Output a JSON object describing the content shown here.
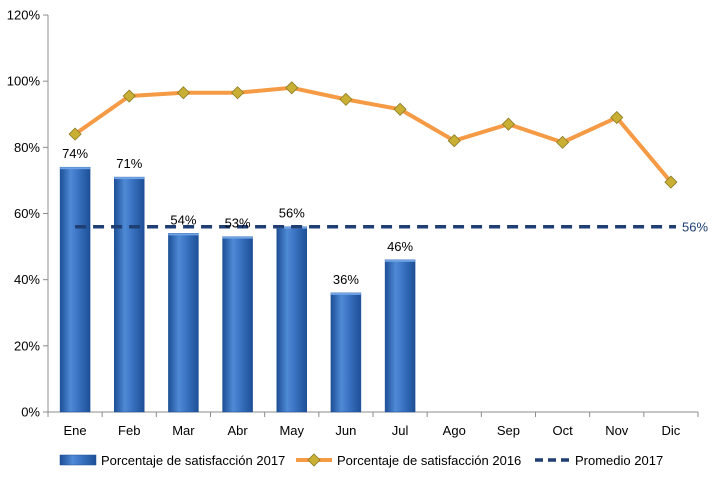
{
  "chart_data": {
    "type": "bar",
    "categories": [
      "Ene",
      "Feb",
      "Mar",
      "Abr",
      "May",
      "Jun",
      "Jul",
      "Ago",
      "Sep",
      "Oct",
      "Nov",
      "Dic"
    ],
    "ylim": [
      0,
      120
    ],
    "yticks": [
      "0%",
      "20%",
      "40%",
      "60%",
      "80%",
      "100%",
      "120%"
    ],
    "grid": false,
    "legend_position": "bottom",
    "series": [
      {
        "name": "Porcentaje de satisfacción 2017",
        "type": "bar",
        "color": "#3b76c4",
        "values": [
          74,
          71,
          54,
          53,
          56,
          36,
          46,
          null,
          null,
          null,
          null,
          null
        ],
        "labels": [
          "74%",
          "71%",
          "54%",
          "53%",
          "56%",
          "36%",
          "46%",
          "",
          "",
          "",
          "",
          ""
        ]
      },
      {
        "name": "Porcentaje de satisfacción 2016",
        "type": "line",
        "color": "#f59a45",
        "marker_color": "#c9b035",
        "values": [
          84,
          95.5,
          96.5,
          96.5,
          98,
          94.5,
          91.5,
          82,
          87,
          81.5,
          89,
          69.5
        ]
      },
      {
        "name": "Promedio 2017",
        "type": "line",
        "style": "dashed",
        "color": "#1f3f74",
        "value": 56,
        "label": "56%"
      }
    ]
  }
}
